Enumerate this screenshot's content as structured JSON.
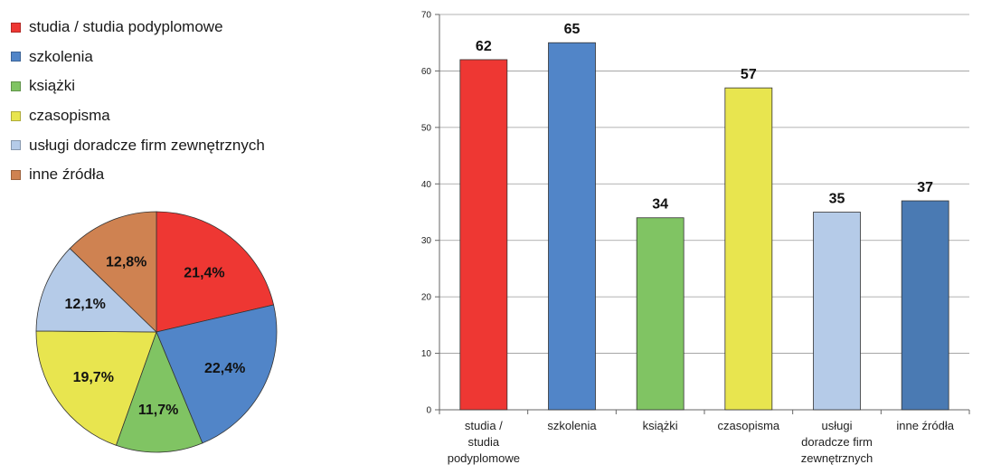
{
  "chart_data": [
    {
      "type": "pie",
      "categories": [
        "studia / studia podyplomowe",
        "szkolenia",
        "książki",
        "czasopisma",
        "usługi doradcze firm zewnętrznych",
        "inne źródła"
      ],
      "values": [
        21.4,
        22.4,
        11.7,
        19.7,
        12.1,
        12.8
      ],
      "value_labels": [
        "21,4%",
        "22,4%",
        "11,7%",
        "19,7%",
        "12,1%",
        "12,8%"
      ],
      "colors": [
        "#ee3733",
        "#5185c8",
        "#80c463",
        "#e8e54f",
        "#b5cbe8",
        "#cf8251"
      ],
      "legend": "top-left"
    },
    {
      "type": "bar",
      "categories": [
        "studia / studia podyplomowe",
        "szkolenia",
        "książki",
        "czasopisma",
        "usługi doradcze firm zewnętrznych",
        "inne źródła"
      ],
      "category_lines": [
        [
          "studia /",
          "studia",
          "podyplomowe"
        ],
        [
          "szkolenia"
        ],
        [
          "książki"
        ],
        [
          "czasopisma"
        ],
        [
          "usługi",
          "doradcze firm",
          "zewnętrznych"
        ],
        [
          "inne źródła"
        ]
      ],
      "values": [
        62,
        65,
        34,
        57,
        35,
        37
      ],
      "colors": [
        "#ee3733",
        "#5185c8",
        "#80c463",
        "#e8e54f",
        "#b5cbe8",
        "#4a7ab3"
      ],
      "ylim": [
        0,
        70
      ],
      "yticks": [
        0,
        10,
        20,
        30,
        40,
        50,
        60,
        70
      ],
      "grid": true
    }
  ]
}
